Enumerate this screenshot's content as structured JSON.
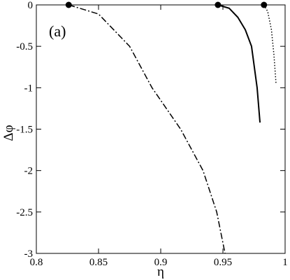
{
  "chart_data": {
    "type": "line",
    "xlabel": "η",
    "ylabel": "Δφ",
    "annotation": "(a)",
    "xlim": [
      0.8,
      1
    ],
    "ylim": [
      -3,
      0
    ],
    "xticks": [
      0.8,
      0.85,
      0.9,
      0.95,
      1
    ],
    "yticks": [
      0,
      -0.5,
      -1,
      -1.5,
      -2,
      -2.5,
      -3
    ],
    "series": [
      {
        "style": "dashdot",
        "color": "#000",
        "x": [
          0.826,
          0.85,
          0.875,
          0.893,
          0.916,
          0.934,
          0.945,
          0.9517
        ],
        "values": [
          0,
          -0.11,
          -0.5,
          -1,
          -1.5,
          -2,
          -2.5,
          -3
        ]
      },
      {
        "style": "solid",
        "color": "#000",
        "x": [
          0.946,
          0.955,
          0.962,
          0.968,
          0.973,
          0.9775,
          0.9798
        ],
        "values": [
          0,
          -0.04,
          -0.15,
          -0.3,
          -0.5,
          -1,
          -1.42
        ]
      },
      {
        "style": "dotted",
        "color": "#000",
        "x": [
          0.983,
          0.986,
          0.989,
          0.991,
          0.9927
        ],
        "values": [
          0,
          -0.08,
          -0.3,
          -0.6,
          -0.95
        ]
      }
    ],
    "points": {
      "x": [
        0.826,
        0.946,
        0.983
      ],
      "values": [
        0,
        0,
        0
      ],
      "color": "#000"
    }
  }
}
